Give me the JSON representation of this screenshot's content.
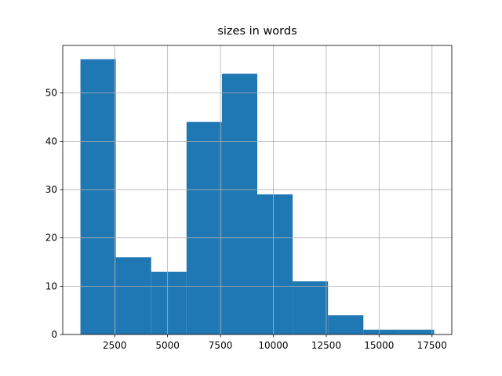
{
  "chart_data": {
    "type": "histogram",
    "title": "sizes in words",
    "bins": [
      880,
      2552,
      4224,
      5896,
      7568,
      9240,
      10912,
      12584,
      14256,
      15928,
      17600
    ],
    "values": [
      57,
      16,
      13,
      44,
      54,
      29,
      11,
      4,
      1,
      1
    ],
    "color": "#1f77b4",
    "xlim": [
      44,
      18436
    ],
    "xticks": [
      2500,
      5000,
      7500,
      10000,
      12500,
      15000,
      17500
    ],
    "ylim": [
      0,
      59.85
    ],
    "yticks": [
      0,
      10,
      20,
      30,
      40,
      50
    ],
    "grid": true
  }
}
